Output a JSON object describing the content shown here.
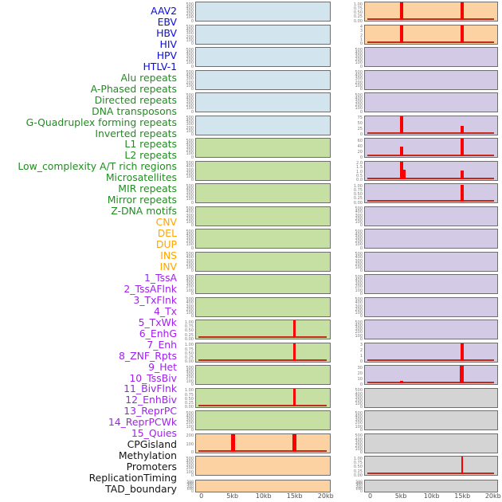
{
  "chart_data": {
    "type": "bar",
    "title": "",
    "x_axis": {
      "ticks": [
        "0",
        "5kb",
        "10kb",
        "15kb",
        "20kb"
      ],
      "tick_kb": [
        0,
        5,
        10,
        15,
        20
      ],
      "x_range_kb": [
        0,
        20
      ],
      "unit": "kb"
    },
    "colors": {
      "label_virus": "#0b0bdf",
      "label_repeat": "#228b22",
      "label_sv": "#ffa500",
      "label_chromatin": "#a020f0",
      "label_other": "#141414",
      "panel_bg": {
        "blue": "#d2e4ee",
        "green": "#c6dfa2",
        "orange": "#fcd2a2",
        "purple": "#d3cbe5",
        "gray": "#d4d4d4"
      },
      "spike": "#fb0000",
      "baseline": "#c22a1a",
      "tick_text": "#7d7d7d",
      "axis_text": "#4d4d4d"
    },
    "default_yticks": [
      "0",
      "100",
      "200",
      "300",
      "400",
      "500"
    ],
    "labels": [
      {
        "text": "AAV2",
        "cat": "virus"
      },
      {
        "text": "EBV",
        "cat": "virus"
      },
      {
        "text": "HBV",
        "cat": "virus"
      },
      {
        "text": "HIV",
        "cat": "virus"
      },
      {
        "text": "HPV",
        "cat": "virus"
      },
      {
        "text": "HTLV-1",
        "cat": "virus"
      },
      {
        "text": "Alu repeats",
        "cat": "repeat"
      },
      {
        "text": "A-Phased repeats",
        "cat": "repeat"
      },
      {
        "text": "Directed repeats",
        "cat": "repeat"
      },
      {
        "text": "DNA transposons",
        "cat": "repeat"
      },
      {
        "text": "G-Quadruplex forming repeats",
        "cat": "repeat"
      },
      {
        "text": "Inverted repeats",
        "cat": "repeat"
      },
      {
        "text": "L1 repeats",
        "cat": "repeat"
      },
      {
        "text": "L2 repeats",
        "cat": "repeat"
      },
      {
        "text": "Low_complexity A/T rich regions",
        "cat": "repeat"
      },
      {
        "text": "Microsatellites",
        "cat": "repeat"
      },
      {
        "text": "MIR repeats",
        "cat": "repeat"
      },
      {
        "text": "Mirror repeats",
        "cat": "repeat"
      },
      {
        "text": "Z-DNA motifs",
        "cat": "repeat"
      },
      {
        "text": "CNV",
        "cat": "sv"
      },
      {
        "text": "DEL",
        "cat": "sv"
      },
      {
        "text": "DUP",
        "cat": "sv"
      },
      {
        "text": "INS",
        "cat": "sv"
      },
      {
        "text": "INV",
        "cat": "sv"
      },
      {
        "text": "1_TssA",
        "cat": "chromatin"
      },
      {
        "text": "2_TssAFlnk",
        "cat": "chromatin"
      },
      {
        "text": "3_TxFlnk",
        "cat": "chromatin"
      },
      {
        "text": "4_Tx",
        "cat": "chromatin"
      },
      {
        "text": "5_TxWk",
        "cat": "chromatin"
      },
      {
        "text": "6_EnhG",
        "cat": "chromatin"
      },
      {
        "text": "7_Enh",
        "cat": "chromatin"
      },
      {
        "text": "8_ZNF_Rpts",
        "cat": "chromatin"
      },
      {
        "text": "9_Het",
        "cat": "chromatin"
      },
      {
        "text": "10_TssBiv",
        "cat": "chromatin"
      },
      {
        "text": "11_BivFlnk",
        "cat": "chromatin"
      },
      {
        "text": "12_EnhBiv",
        "cat": "chromatin"
      },
      {
        "text": "13_ReprPC",
        "cat": "chromatin"
      },
      {
        "text": "14_ReprPCWk",
        "cat": "chromatin"
      },
      {
        "text": "15_Quies",
        "cat": "chromatin"
      },
      {
        "text": "CPGisland",
        "cat": "other"
      },
      {
        "text": "Methylation",
        "cat": "other"
      },
      {
        "text": "Promoters",
        "cat": "other"
      },
      {
        "text": "ReplicationTiming",
        "cat": "other"
      },
      {
        "text": "TAD_boundary",
        "cat": "other"
      }
    ],
    "left_panels": [
      {
        "bg": "blue"
      },
      {
        "bg": "blue"
      },
      {
        "bg": "blue"
      },
      {
        "bg": "blue"
      },
      {
        "bg": "blue"
      },
      {
        "bg": "blue"
      },
      {
        "bg": "green"
      },
      {
        "bg": "green"
      },
      {
        "bg": "green"
      },
      {
        "bg": "green"
      },
      {
        "bg": "green"
      },
      {
        "bg": "green"
      },
      {
        "bg": "green"
      },
      {
        "bg": "green"
      },
      {
        "bg": "green",
        "yticks": [
          "0.00",
          "0.25",
          "0.50",
          "0.75",
          "1.00"
        ],
        "ymax": 1.05,
        "baseline": true,
        "spikes": [
          {
            "x_kb": 15,
            "value": 1.05,
            "w": 3
          }
        ]
      },
      {
        "bg": "green",
        "yticks": [
          "0.00",
          "0.25",
          "0.50",
          "0.75",
          "1.00"
        ],
        "ymax": 1.05,
        "baseline": true,
        "spikes": [
          {
            "x_kb": 15,
            "value": 1.05,
            "w": 3
          }
        ]
      },
      {
        "bg": "green"
      },
      {
        "bg": "green",
        "yticks": [
          "0.00",
          "0.25",
          "0.50",
          "0.75",
          "1.00"
        ],
        "ymax": 1.05,
        "baseline": true,
        "spikes": [
          {
            "x_kb": 15,
            "value": 1.05,
            "w": 3
          }
        ]
      },
      {
        "bg": "green"
      },
      {
        "bg": "orange",
        "yticks": [
          "0",
          "100",
          "200"
        ],
        "ymax": 250,
        "baseline": true,
        "spikes": [
          {
            "x_kb": 5,
            "value": 250,
            "w": 5
          },
          {
            "x_kb": 15,
            "value": 250,
            "w": 5
          }
        ]
      },
      {
        "bg": "orange"
      },
      {
        "bg": "orange",
        "thin": true
      }
    ],
    "right_panels": [
      {
        "bg": "orange",
        "yticks": [
          "0.00",
          "0.25",
          "0.50",
          "0.75",
          "1.00"
        ],
        "ymax": 1.05,
        "baseline": true,
        "spikes": [
          {
            "x_kb": 5,
            "value": 1.05,
            "w": 4
          },
          {
            "x_kb": 15,
            "value": 1.05,
            "w": 4
          }
        ]
      },
      {
        "bg": "orange",
        "yticks": [
          "0",
          "1",
          "2",
          "3",
          "4"
        ],
        "ymax": 4.2,
        "baseline": true,
        "spikes": [
          {
            "x_kb": 5,
            "value": 4.2,
            "w": 4
          },
          {
            "x_kb": 15,
            "value": 4.2,
            "w": 4
          }
        ]
      },
      {
        "bg": "purple"
      },
      {
        "bg": "purple"
      },
      {
        "bg": "purple"
      },
      {
        "bg": "purple",
        "yticks": [
          "0",
          "25",
          "50",
          "75"
        ],
        "ymax": 80,
        "baseline": true,
        "spikes": [
          {
            "x_kb": 5,
            "value": 78,
            "w": 4
          },
          {
            "x_kb": 15,
            "value": 34,
            "w": 4
          }
        ]
      },
      {
        "bg": "purple",
        "yticks": [
          "0",
          "20",
          "40",
          "60"
        ],
        "ymax": 63,
        "baseline": true,
        "spikes": [
          {
            "x_kb": 5,
            "value": 35,
            "w": 4
          },
          {
            "x_kb": 15,
            "value": 62,
            "w": 4
          }
        ]
      },
      {
        "bg": "purple",
        "yticks": [
          "0.0",
          "0.5",
          "1.0",
          "1.5",
          "2.0"
        ],
        "ymax": 2.1,
        "baseline": true,
        "spikes": [
          {
            "x_kb": 5,
            "value": 2.1,
            "w": 4
          },
          {
            "x_kb": 5.5,
            "value": 1.15,
            "w": 3
          },
          {
            "x_kb": 15,
            "value": 1.05,
            "w": 4
          }
        ]
      },
      {
        "bg": "purple",
        "yticks": [
          "0.00",
          "0.25",
          "0.50",
          "0.75",
          "1.00"
        ],
        "ymax": 1.05,
        "baseline": true,
        "spikes": [
          {
            "x_kb": 15,
            "value": 1.0,
            "w": 4
          }
        ]
      },
      {
        "bg": "purple"
      },
      {
        "bg": "purple"
      },
      {
        "bg": "purple"
      },
      {
        "bg": "purple"
      },
      {
        "bg": "purple"
      },
      {
        "bg": "purple"
      },
      {
        "bg": "purple",
        "yticks": [
          "0",
          "1",
          "2",
          "3"
        ],
        "ymax": 3.2,
        "baseline": true,
        "spikes": [
          {
            "x_kb": 15,
            "value": 3.2,
            "w": 4
          }
        ]
      },
      {
        "bg": "purple",
        "yticks": [
          "0",
          "10",
          "20",
          "30"
        ],
        "ymax": 32,
        "baseline": true,
        "spikes": [
          {
            "x_kb": 5,
            "value": 4.5,
            "w": 4
          },
          {
            "x_kb": 15,
            "value": 32,
            "w": 5
          }
        ]
      },
      {
        "bg": "gray"
      },
      {
        "bg": "gray"
      },
      {
        "bg": "gray"
      },
      {
        "bg": "gray",
        "yticks": [
          "0.00",
          "0.25",
          "0.50",
          "0.75",
          "1.00"
        ],
        "ymax": 1.05,
        "baseline": true,
        "spikes": [
          {
            "x_kb": 15,
            "value": 1.05,
            "w": 2
          }
        ]
      },
      {
        "bg": "gray",
        "thin": true
      }
    ]
  }
}
